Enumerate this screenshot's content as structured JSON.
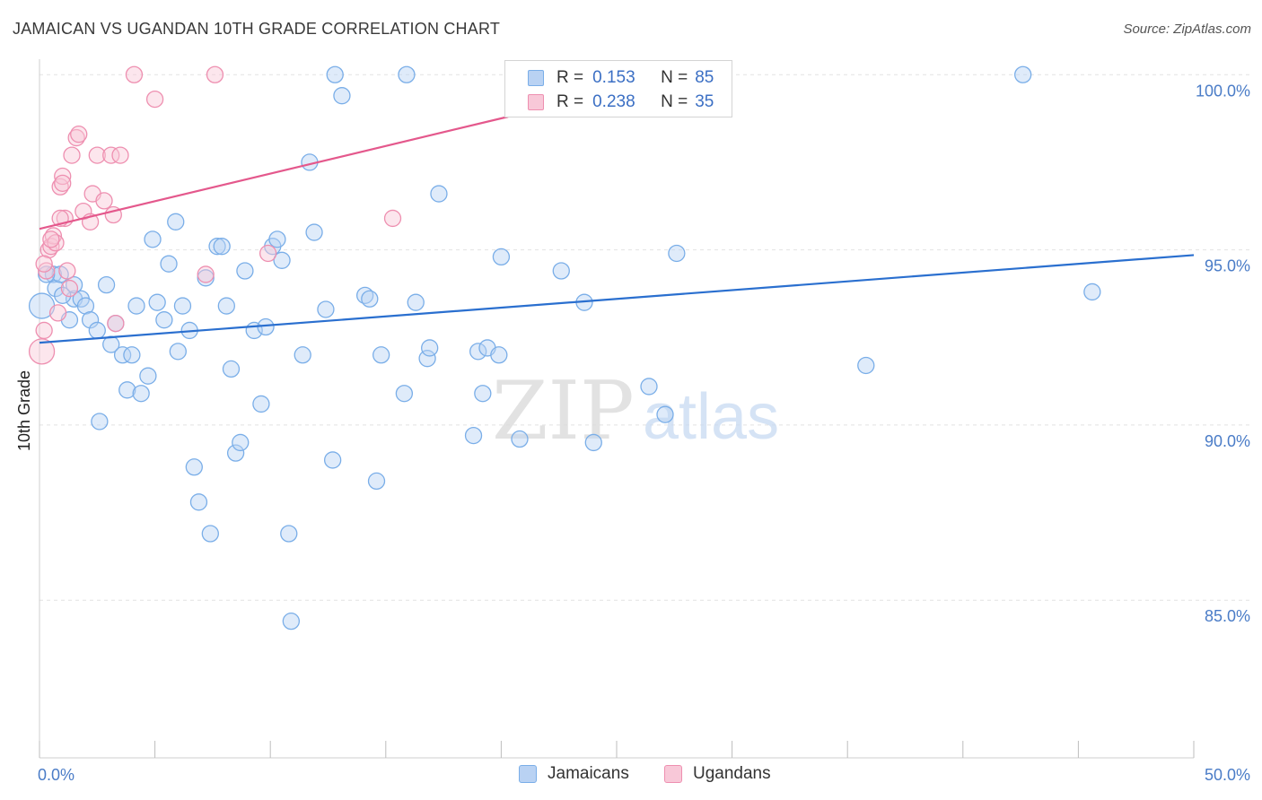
{
  "header": {
    "title": "JAMAICAN VS UGANDAN 10TH GRADE CORRELATION CHART",
    "source": "Source: ZipAtlas.com"
  },
  "legend": {
    "rows": [
      {
        "r_label": "R =",
        "r_value": "0.153",
        "n_label": "N =",
        "n_value": "85",
        "color": "#7aaee8",
        "fill": "#b9d2f3"
      },
      {
        "r_label": "R =",
        "r_value": "0.238",
        "n_label": "N =",
        "n_value": "35",
        "color": "#ee8fb0",
        "fill": "#f8c8d8"
      }
    ]
  },
  "bottom_legend": {
    "items": [
      {
        "label": "Jamaicans",
        "color": "#7aaee8",
        "fill": "#b9d2f3"
      },
      {
        "label": "Ugandans",
        "color": "#ee8fb0",
        "fill": "#f8c8d8"
      }
    ]
  },
  "watermark": {
    "zip": "ZIP",
    "atlas": "atlas"
  },
  "chart_data": {
    "type": "scatter",
    "title": "JAMAICAN VS UGANDAN 10TH GRADE CORRELATION CHART",
    "xlabel": "",
    "ylabel": "10th Grade",
    "xlim": [
      0,
      50
    ],
    "ylim": [
      80.5,
      100.8
    ],
    "x_tick_labels": [
      {
        "value": 0,
        "label": "0.0%"
      },
      {
        "value": 50,
        "label": "50.0%"
      }
    ],
    "y_ticks": [
      {
        "value": 100,
        "label": "100.0%"
      },
      {
        "value": 95,
        "label": "95.0%"
      },
      {
        "value": 90,
        "label": "90.0%"
      },
      {
        "value": 85,
        "label": "85.0%"
      }
    ],
    "x_minor_ticks": [
      0,
      5,
      10,
      15,
      20,
      25,
      30,
      35,
      40,
      45,
      50
    ],
    "grid": true,
    "series": [
      {
        "name": "Jamaicans",
        "stroke": "#7aaee8",
        "fill": "#b9d2f3",
        "trend": {
          "x": [
            0,
            50
          ],
          "y": [
            92.35,
            94.85
          ],
          "color": "#2a6fcf"
        },
        "points": [
          [
            0.1,
            93.4
          ],
          [
            0.6,
            94.3
          ],
          [
            0.7,
            93.9
          ],
          [
            0.9,
            94.3
          ],
          [
            1.3,
            93.0
          ],
          [
            1.5,
            93.6
          ],
          [
            1.8,
            93.6
          ],
          [
            2.0,
            93.4
          ],
          [
            2.2,
            93.0
          ],
          [
            2.5,
            92.7
          ],
          [
            2.6,
            90.1
          ],
          [
            2.9,
            94.0
          ],
          [
            3.1,
            92.3
          ],
          [
            3.3,
            92.9
          ],
          [
            3.6,
            92.0
          ],
          [
            3.8,
            91.0
          ],
          [
            4.0,
            92.0
          ],
          [
            4.2,
            93.4
          ],
          [
            4.4,
            90.9
          ],
          [
            4.7,
            91.4
          ],
          [
            4.9,
            95.3
          ],
          [
            5.1,
            93.5
          ],
          [
            5.4,
            93.0
          ],
          [
            5.6,
            94.6
          ],
          [
            5.9,
            95.8
          ],
          [
            6.0,
            92.1
          ],
          [
            6.2,
            93.4
          ],
          [
            6.5,
            92.7
          ],
          [
            6.7,
            88.8
          ],
          [
            6.9,
            87.8
          ],
          [
            7.2,
            94.2
          ],
          [
            7.4,
            86.9
          ],
          [
            7.7,
            95.1
          ],
          [
            7.9,
            95.1
          ],
          [
            8.1,
            93.4
          ],
          [
            8.3,
            91.6
          ],
          [
            8.5,
            89.2
          ],
          [
            8.7,
            89.5
          ],
          [
            8.9,
            94.4
          ],
          [
            9.3,
            92.7
          ],
          [
            9.6,
            90.6
          ],
          [
            9.8,
            92.8
          ],
          [
            10.1,
            95.1
          ],
          [
            10.3,
            95.3
          ],
          [
            10.5,
            94.7
          ],
          [
            10.8,
            86.9
          ],
          [
            10.9,
            84.4
          ],
          [
            11.4,
            92.0
          ],
          [
            11.7,
            97.5
          ],
          [
            11.9,
            95.5
          ],
          [
            12.4,
            93.3
          ],
          [
            12.7,
            89.0
          ],
          [
            12.8,
            100.0
          ],
          [
            13.1,
            99.4
          ],
          [
            14.1,
            93.7
          ],
          [
            14.3,
            93.6
          ],
          [
            14.6,
            88.4
          ],
          [
            14.8,
            92.0
          ],
          [
            15.8,
            90.9
          ],
          [
            15.9,
            100.0
          ],
          [
            16.3,
            93.5
          ],
          [
            16.8,
            91.9
          ],
          [
            16.9,
            92.2
          ],
          [
            17.3,
            96.6
          ],
          [
            18.8,
            89.7
          ],
          [
            19.0,
            92.1
          ],
          [
            19.2,
            90.9
          ],
          [
            19.4,
            92.2
          ],
          [
            19.9,
            92.0
          ],
          [
            20.0,
            94.8
          ],
          [
            20.8,
            89.6
          ],
          [
            22.6,
            94.4
          ],
          [
            23.6,
            93.5
          ],
          [
            24.0,
            89.5
          ],
          [
            26.4,
            91.1
          ],
          [
            26.9,
            100.0
          ],
          [
            27.1,
            90.3
          ],
          [
            27.6,
            94.9
          ],
          [
            28.3,
            100.0
          ],
          [
            35.8,
            91.7
          ],
          [
            42.6,
            100.0
          ],
          [
            45.6,
            93.8
          ],
          [
            0.3,
            94.3
          ],
          [
            1.0,
            93.7
          ],
          [
            1.5,
            94.0
          ]
        ]
      },
      {
        "name": "Ugandans",
        "stroke": "#ee8fb0",
        "fill": "#f8c8d8",
        "trend": {
          "x": [
            0,
            20.3
          ],
          "y": [
            95.6,
            98.8
          ],
          "color": "#e4588c"
        },
        "trend_dashed": {
          "x": [
            20.3,
            26.0
          ],
          "y": [
            98.8,
            99.8
          ],
          "color": "#e9a0bd"
        },
        "points": [
          [
            0.1,
            92.1
          ],
          [
            0.2,
            92.7
          ],
          [
            0.3,
            94.4
          ],
          [
            0.4,
            95.0
          ],
          [
            0.5,
            95.1
          ],
          [
            0.6,
            95.4
          ],
          [
            0.7,
            95.2
          ],
          [
            0.8,
            93.2
          ],
          [
            0.9,
            96.8
          ],
          [
            1.0,
            97.1
          ],
          [
            1.0,
            96.9
          ],
          [
            1.1,
            95.9
          ],
          [
            1.2,
            94.4
          ],
          [
            1.3,
            93.9
          ],
          [
            1.4,
            97.7
          ],
          [
            1.6,
            98.2
          ],
          [
            1.7,
            98.3
          ],
          [
            1.9,
            96.1
          ],
          [
            2.2,
            95.8
          ],
          [
            2.3,
            96.6
          ],
          [
            2.5,
            97.7
          ],
          [
            2.8,
            96.4
          ],
          [
            3.1,
            97.7
          ],
          [
            3.2,
            96.0
          ],
          [
            3.3,
            92.9
          ],
          [
            3.5,
            97.7
          ],
          [
            4.1,
            100.0
          ],
          [
            5.0,
            99.3
          ],
          [
            7.2,
            94.3
          ],
          [
            7.6,
            100.0
          ],
          [
            9.9,
            94.9
          ],
          [
            15.3,
            95.9
          ],
          [
            0.2,
            94.6
          ],
          [
            0.5,
            95.3
          ],
          [
            0.9,
            95.9
          ]
        ]
      }
    ]
  }
}
